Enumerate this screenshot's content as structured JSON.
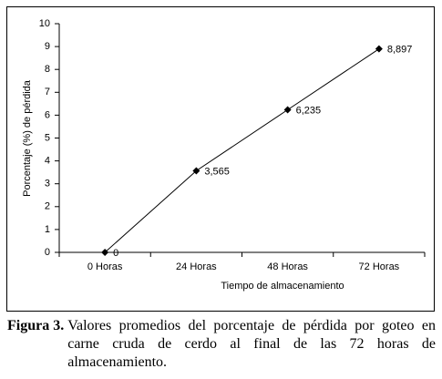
{
  "chart_data": {
    "type": "line",
    "x_label": "Tiempo de almacenamiento",
    "y_label": "Porcentaje (%) de pérdida",
    "categories": [
      "0 Horas",
      "24 Horas",
      "48 Horas",
      "72 Horas"
    ],
    "values": [
      0,
      3.565,
      6.235,
      8.897
    ],
    "value_labels": [
      "0",
      "3,565",
      "6,235",
      "8,897"
    ],
    "color": "#000000",
    "ylim": [
      0,
      10
    ],
    "yticks": [
      0,
      1,
      2,
      3,
      4,
      5,
      6,
      7,
      8,
      9,
      10
    ],
    "grid": false
  },
  "caption": {
    "label": "Figura 3.",
    "text": "Valores promedios del porcentaje de pérdida por goteo en carne cruda de cerdo al final de las 72 horas de almacenamiento."
  }
}
